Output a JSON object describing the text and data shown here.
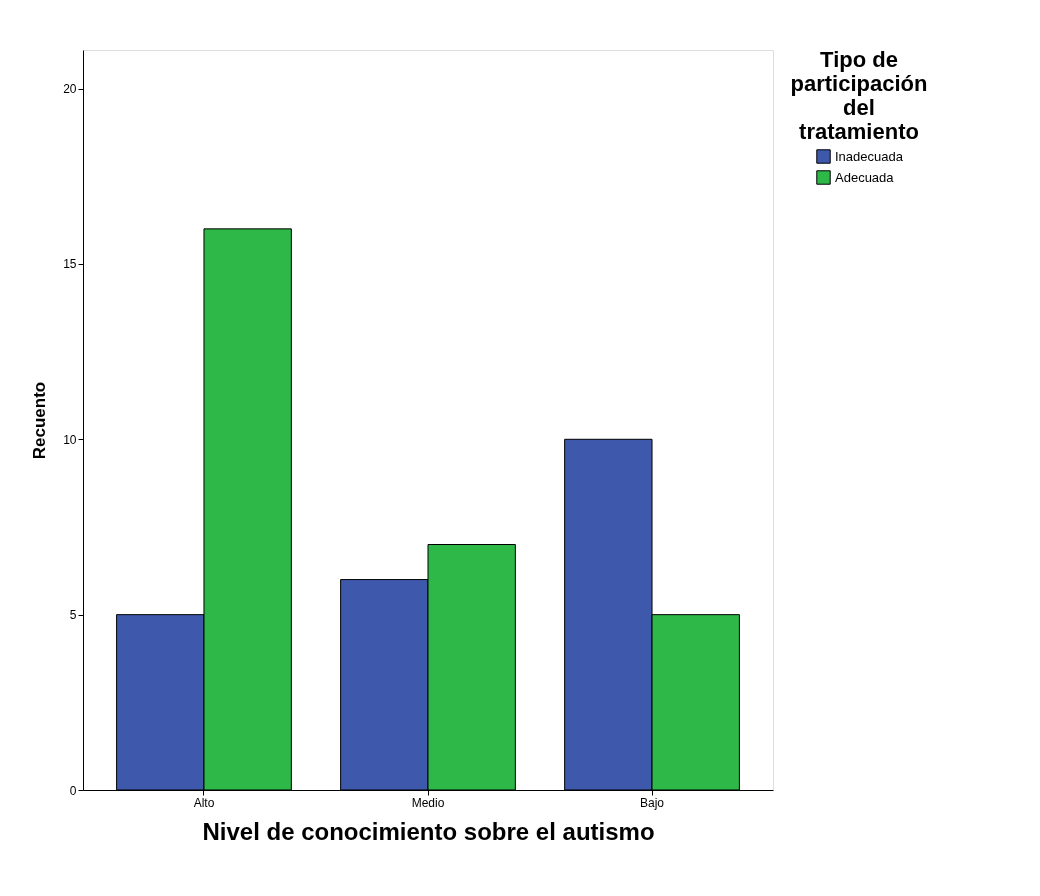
{
  "chart_data": {
    "type": "bar",
    "xlabel": "Nivel de conocimiento sobre el autismo",
    "ylabel": "Recuento",
    "legend_title": "Tipo de participación del tratamiento",
    "categories": [
      "Alto",
      "Medio",
      "Bajo"
    ],
    "series": [
      {
        "name": "Inadecuada",
        "color": "#3e58ac",
        "values": [
          5,
          6,
          10
        ]
      },
      {
        "name": "Adecuada",
        "color": "#2eb848",
        "values": [
          16,
          7,
          5
        ]
      }
    ],
    "ylim": [
      0,
      21.1
    ],
    "yticks": [
      0,
      5,
      10,
      15,
      20
    ],
    "grid": false,
    "legend": "top right"
  }
}
